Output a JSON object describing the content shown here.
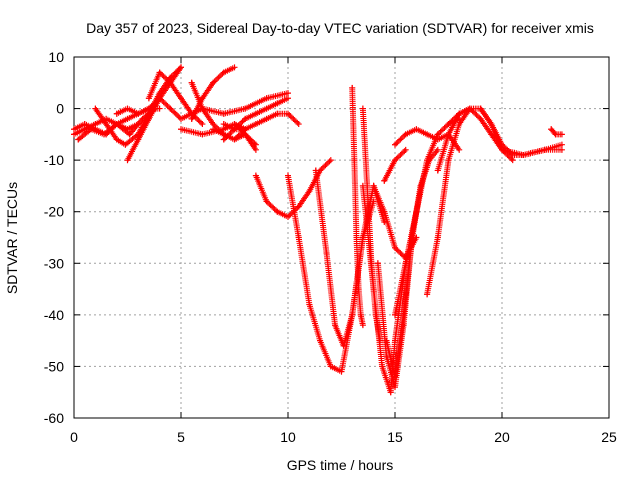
{
  "chart_data": {
    "type": "scatter",
    "title": "Day 357 of 2023, Sidereal Day-to-day VTEC variation (SDTVAR) for receiver xmis",
    "xlabel": "GPS time / hours",
    "ylabel": "SDTVAR / TECUs",
    "xlim": [
      0,
      25
    ],
    "ylim": [
      -60,
      10
    ],
    "xticks": [
      0,
      5,
      10,
      15,
      20,
      25
    ],
    "yticks": [
      -60,
      -50,
      -40,
      -30,
      -20,
      -10,
      0,
      10
    ],
    "xtick_labels": [
      "0",
      "5",
      "10",
      "15",
      "20",
      "25"
    ],
    "ytick_labels": [
      "-60",
      "-50",
      "-40",
      "-30",
      "-20",
      "-10",
      "0",
      "10"
    ],
    "grid": true,
    "marker": "+",
    "color": "#ff0000",
    "series": [
      {
        "x": [
          0.0,
          0.5,
          1.0,
          1.5,
          2.0,
          2.5,
          3.0,
          3.5,
          4.0
        ],
        "y": [
          -5,
          -4,
          -3,
          -2,
          -3,
          -2,
          -1,
          0,
          0
        ]
      },
      {
        "x": [
          0.0,
          0.5,
          1.0,
          1.5,
          2.0,
          2.5,
          3.0
        ],
        "y": [
          -4,
          -3,
          -4,
          -5,
          -3,
          -4,
          -3
        ]
      },
      {
        "x": [
          0.2,
          0.8,
          1.4,
          2.0,
          2.6,
          3.2,
          3.8
        ],
        "y": [
          -6,
          -4,
          -5,
          -3,
          -5,
          -2,
          0
        ]
      },
      {
        "x": [
          1.0,
          1.5,
          2.0,
          2.4,
          3.0,
          3.5,
          4.0,
          4.5,
          5.0
        ],
        "y": [
          0,
          -3,
          -6,
          -7,
          -5,
          -1,
          3,
          6,
          8
        ]
      },
      {
        "x": [
          2.5,
          3.0,
          3.5,
          4.0,
          4.5,
          5.0
        ],
        "y": [
          -10,
          -6,
          -2,
          2,
          5,
          8
        ]
      },
      {
        "x": [
          3.5,
          4.0,
          4.5,
          5.0,
          5.5,
          6.0
        ],
        "y": [
          2,
          7,
          5,
          2,
          -1,
          -3
        ]
      },
      {
        "x": [
          2.0,
          2.5,
          3.0,
          3.5,
          4.0,
          4.5,
          5.0,
          5.5,
          6.0,
          7.0,
          8.0,
          9.0,
          10.0
        ],
        "y": [
          -1,
          0,
          -1,
          0,
          2,
          0,
          -2,
          -1,
          0,
          -1,
          0,
          2,
          3
        ]
      },
      {
        "x": [
          5.5,
          6.0,
          6.5,
          7.0,
          7.5
        ],
        "y": [
          -2,
          2,
          5,
          7,
          8
        ]
      },
      {
        "x": [
          5.5,
          6.0,
          6.5,
          7.0
        ],
        "y": [
          5,
          0,
          -3,
          -5
        ]
      },
      {
        "x": [
          5.0,
          6.0,
          7.0,
          7.5,
          8.0
        ],
        "y": [
          -4,
          -5,
          -4,
          -3,
          -4
        ]
      },
      {
        "x": [
          6.5,
          7.0,
          7.5,
          8.0,
          8.5
        ],
        "y": [
          -4,
          -5,
          -6,
          -5,
          -7
        ]
      },
      {
        "x": [
          7.0,
          7.5,
          8.0
        ],
        "y": [
          -3,
          -4,
          -4
        ]
      },
      {
        "x": [
          7.0,
          7.5,
          8.0,
          8.5,
          9.0,
          9.5,
          10.0
        ],
        "y": [
          -6,
          -4,
          -2,
          -1,
          0,
          1,
          2
        ]
      },
      {
        "x": [
          7.5,
          8.0,
          8.5,
          9.0,
          9.5,
          10.0,
          10.5
        ],
        "y": [
          -6,
          -4,
          -3,
          -2,
          -1,
          -1,
          -3
        ]
      },
      {
        "x": [
          7.5,
          7.8,
          8.0,
          8.5
        ],
        "y": [
          -3,
          -4,
          -5,
          -8
        ]
      },
      {
        "x": [
          8.5,
          9.0,
          9.5,
          10.0,
          10.5,
          11.0,
          11.5,
          12.0
        ],
        "y": [
          -13,
          -18,
          -20,
          -21,
          -19,
          -16,
          -12,
          -10
        ]
      },
      {
        "x": [
          10.0,
          10.5,
          11.0,
          11.5,
          12.0,
          12.5,
          13.0,
          13.5,
          14.0
        ],
        "y": [
          -13,
          -25,
          -38,
          -45,
          -50,
          -51,
          -40,
          -25,
          -18
        ]
      },
      {
        "x": [
          11.3,
          11.8,
          12.2,
          12.6,
          13.0,
          13.5,
          14.0,
          14.5
        ],
        "y": [
          -12,
          -28,
          -42,
          -46,
          -40,
          -25,
          -15,
          -22
        ]
      },
      {
        "x": [
          13.0,
          13.1,
          13.2,
          13.3,
          13.4,
          13.5
        ],
        "y": [
          4,
          -10,
          -25,
          -35,
          -40,
          -42
        ]
      },
      {
        "x": [
          13.5,
          13.7,
          13.9,
          14.1,
          14.3
        ],
        "y": [
          0,
          -15,
          -30,
          -40,
          -45
        ]
      },
      {
        "x": [
          13.5,
          14.0,
          14.4,
          14.8,
          15.0,
          15.5,
          16.0
        ],
        "y": [
          -15,
          -35,
          -50,
          -55,
          -45,
          -30,
          -20
        ]
      },
      {
        "x": [
          14.2,
          14.6,
          15.0,
          15.4,
          15.8,
          16.2,
          16.6
        ],
        "y": [
          -30,
          -48,
          -54,
          -42,
          -25,
          -15,
          -10
        ]
      },
      {
        "x": [
          14.6,
          15.0,
          15.4,
          15.8,
          16.2,
          16.6,
          17.0
        ],
        "y": [
          -45,
          -52,
          -40,
          -25,
          -15,
          -10,
          -8
        ]
      },
      {
        "x": [
          14.0,
          14.5,
          15.0,
          15.5,
          16.0
        ],
        "y": [
          -15,
          -20,
          -27,
          -29,
          -25
        ]
      },
      {
        "x": [
          14.5,
          15.0,
          15.5
        ],
        "y": [
          -14,
          -10,
          -8
        ]
      },
      {
        "x": [
          15.0,
          15.5,
          16.0,
          16.5,
          17.0,
          17.5,
          18.0
        ],
        "y": [
          -40,
          -30,
          -20,
          -10,
          -5,
          -3,
          -2
        ]
      },
      {
        "x": [
          16.5,
          17.0,
          17.5,
          18.0,
          18.5
        ],
        "y": [
          -36,
          -25,
          -10,
          -3,
          0
        ]
      },
      {
        "x": [
          15.0,
          15.5,
          16.0,
          16.5,
          17.0,
          17.5,
          18.0
        ],
        "y": [
          -7,
          -5,
          -4,
          -5,
          -6,
          -5,
          -8
        ]
      },
      {
        "x": [
          17.0,
          17.5,
          18.0,
          18.5,
          19.0,
          19.5,
          20.0,
          20.5
        ],
        "y": [
          -12,
          -5,
          -1,
          0,
          0,
          -3,
          -8,
          -10
        ]
      },
      {
        "x": [
          17.5,
          18.0,
          18.5,
          19.0,
          19.5,
          20.0,
          21.0,
          22.0,
          22.8
        ],
        "y": [
          -3,
          -1,
          0,
          -2,
          -5,
          -8,
          -9,
          -8,
          -7
        ]
      },
      {
        "x": [
          19.0,
          19.5,
          20.0,
          20.5,
          21.0,
          22.0,
          22.8
        ],
        "y": [
          0,
          -3,
          -7,
          -9,
          -9,
          -8,
          -8
        ]
      },
      {
        "x": [
          22.3,
          22.5,
          22.8
        ],
        "y": [
          -4,
          -5,
          -5
        ]
      }
    ]
  }
}
